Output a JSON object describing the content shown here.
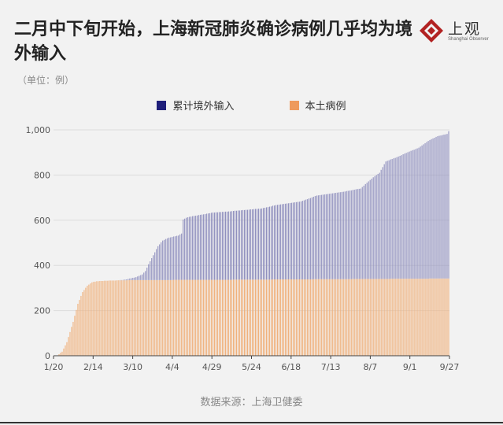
{
  "header": {
    "title": "二月中下旬开始，上海新冠肺炎确诊病例几乎均为境外输入",
    "unit": "（单位：例）"
  },
  "logo": {
    "name": "上观",
    "subtitle": "Shanghai Observer",
    "color": "#b22222"
  },
  "footer": {
    "source": "数据来源：上海卫健委"
  },
  "colors": {
    "imported": "#8f8fbe",
    "imported_legend": "#1f1f7a",
    "local": "#f0b07a",
    "local_legend": "#ee9a5c",
    "axis_text": "#555555"
  },
  "chart_data": {
    "type": "bar",
    "stacked": true,
    "x_start": "2020-01-20",
    "x_end": "2020-09-27",
    "x_step_days": 1,
    "ylim": [
      0,
      1000
    ],
    "yticks": [
      0,
      200,
      400,
      600,
      800,
      1000
    ],
    "ytick_labels": [
      "0",
      "200",
      "400",
      "600",
      "800",
      "1,000"
    ],
    "xtick_labels": [
      "1/20",
      "2/14",
      "3/10",
      "4/4",
      "4/29",
      "5/24",
      "6/18",
      "7/13",
      "8/7",
      "9/1",
      "9/27"
    ],
    "grid": true,
    "legend_position": "top-center",
    "series": [
      {
        "name": "累计境外输入",
        "key": "imported",
        "keypoints": [
          [
            "2020-01-20",
            0
          ],
          [
            "2020-02-29",
            0
          ],
          [
            "2020-03-03",
            1
          ],
          [
            "2020-03-07",
            5
          ],
          [
            "2020-03-12",
            13
          ],
          [
            "2020-03-16",
            25
          ],
          [
            "2020-03-18",
            40
          ],
          [
            "2020-03-20",
            70
          ],
          [
            "2020-03-23",
            110
          ],
          [
            "2020-03-26",
            150
          ],
          [
            "2020-03-29",
            175
          ],
          [
            "2020-04-02",
            188
          ],
          [
            "2020-04-08",
            196
          ],
          [
            "2020-04-10",
            205
          ],
          [
            "2020-04-11",
            267
          ],
          [
            "2020-04-13",
            275
          ],
          [
            "2020-04-17",
            282
          ],
          [
            "2020-04-24",
            290
          ],
          [
            "2020-04-30",
            298
          ],
          [
            "2020-05-15",
            305
          ],
          [
            "2020-05-31",
            315
          ],
          [
            "2020-06-10",
            330
          ],
          [
            "2020-06-25",
            345
          ],
          [
            "2020-07-05",
            370
          ],
          [
            "2020-07-20",
            385
          ],
          [
            "2020-08-02",
            400
          ],
          [
            "2020-08-05",
            420
          ],
          [
            "2020-08-10",
            450
          ],
          [
            "2020-08-14",
            470
          ],
          [
            "2020-08-18",
            520
          ],
          [
            "2020-08-25",
            538
          ],
          [
            "2020-09-01",
            560
          ],
          [
            "2020-09-08",
            580
          ],
          [
            "2020-09-14",
            610
          ],
          [
            "2020-09-20",
            630
          ],
          [
            "2020-09-26",
            640
          ],
          [
            "2020-09-27",
            652
          ]
        ]
      },
      {
        "name": "本土病例",
        "key": "local",
        "keypoints": [
          [
            "2020-01-20",
            0
          ],
          [
            "2020-01-22",
            2
          ],
          [
            "2020-01-25",
            18
          ],
          [
            "2020-01-28",
            60
          ],
          [
            "2020-02-01",
            150
          ],
          [
            "2020-02-04",
            230
          ],
          [
            "2020-02-07",
            282
          ],
          [
            "2020-02-10",
            310
          ],
          [
            "2020-02-13",
            325
          ],
          [
            "2020-02-16",
            330
          ],
          [
            "2020-02-25",
            333
          ],
          [
            "2020-03-10",
            335
          ],
          [
            "2020-04-30",
            336
          ],
          [
            "2020-07-15",
            339
          ],
          [
            "2020-09-27",
            342
          ]
        ]
      }
    ]
  }
}
